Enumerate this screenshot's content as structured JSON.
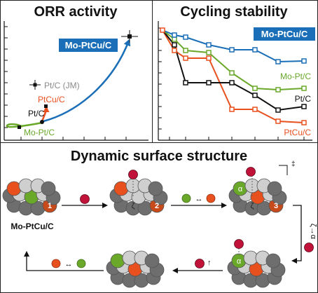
{
  "panels": {
    "orr": {
      "title": "ORR activity",
      "labels": {
        "mo_ptcu_c": "Mo-PtCu/C",
        "pt_c_jm": "Pt/C (JM)",
        "ptcu_c": "PtCu/C",
        "pt_c": "Pt/C",
        "mo_pt_c": "Mo-Pt/C"
      }
    },
    "cycling": {
      "title": "Cycling stability",
      "labels": {
        "mo_ptcu_c": "Mo-PtCu/C",
        "mo_pt_c": "Mo-Pt/C",
        "pt_c": "Pt/C",
        "ptcu_c": "PtCu/C"
      }
    },
    "dynamic": {
      "title": "Dynamic surface structure",
      "catalyst_label": "Mo-PtCu/C",
      "step_numbers": [
        "1",
        "2",
        "3"
      ],
      "sites": {
        "zeta": "ζ",
        "alpha": "α"
      },
      "transition_mark": "‡",
      "vertical_arrow_label": "ζ→α"
    }
  },
  "colors": {
    "blue": "#1a6fb8",
    "green": "#6aa82a",
    "black": "#111111",
    "orange": "#e8511e",
    "gray": "#8a8a8a",
    "crimson": "#c1123a",
    "atom_light": "#cfcfcf",
    "atom_dark": "#6e6e6e",
    "atom_brown": "#c74a1a"
  },
  "icons": [
    "arrow-icon",
    "double-arrow-icon",
    "up-arrow-icon",
    "oxygen-atom-icon"
  ]
}
